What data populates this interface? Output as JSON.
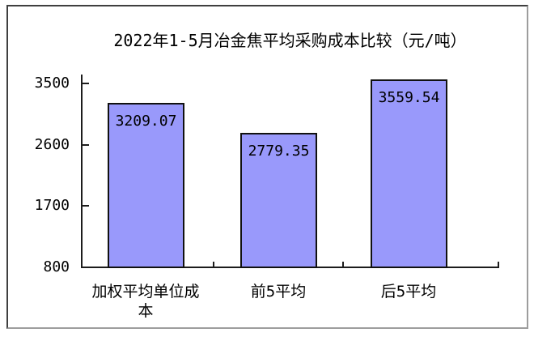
{
  "chart_data": {
    "type": "bar",
    "title": "2022年1-5月冶金焦平均采购成本比较（元/吨）",
    "categories": [
      "加权平均单位成本",
      "前5平均",
      "后5平均"
    ],
    "values": [
      3209.07,
      2779.35,
      3559.54
    ],
    "value_labels": [
      "3209.07",
      "2779.35",
      "3559.54"
    ],
    "xlabel": "",
    "ylabel": "",
    "ylim": [
      800,
      3500
    ],
    "yticks": [
      3500,
      2600,
      1700,
      800
    ],
    "ytick_labels": [
      "3500",
      "2600",
      "1700",
      "800"
    ],
    "grid": false,
    "legend": false,
    "bar_color": "#9999fb",
    "bar_border_color": "#111111",
    "axis_color": "#1c1c1c",
    "text_color": "#000000",
    "background_color": "#ffffff"
  }
}
